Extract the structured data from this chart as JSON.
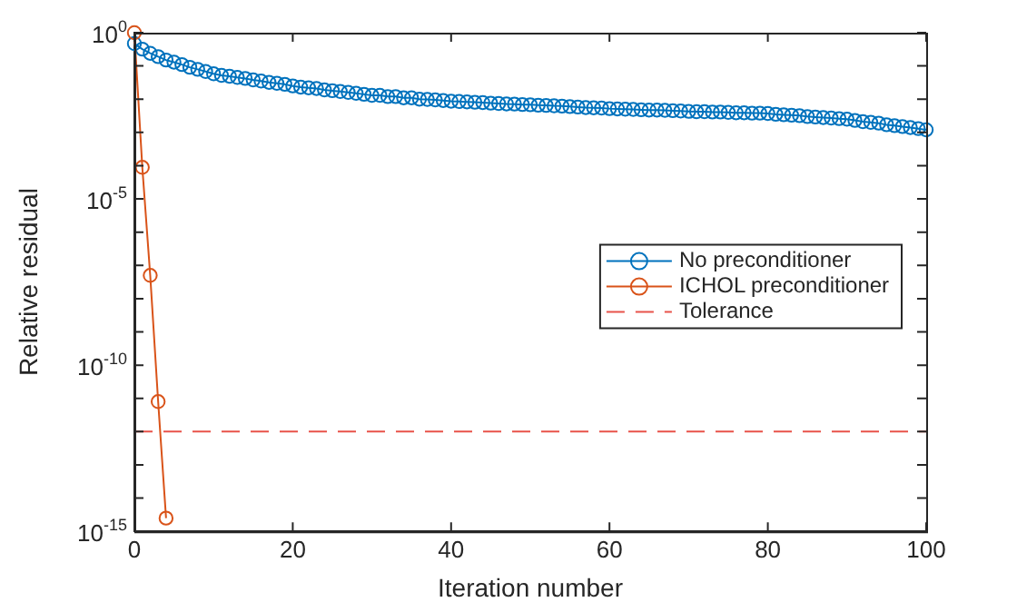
{
  "chart_data": {
    "type": "line",
    "xlabel": "Iteration number",
    "ylabel": "Relative residual",
    "x": [
      0,
      1,
      2,
      3,
      4,
      5,
      6,
      7,
      8,
      9,
      10,
      11,
      12,
      13,
      14,
      15,
      16,
      17,
      18,
      19,
      20,
      21,
      22,
      23,
      24,
      25,
      26,
      27,
      28,
      29,
      30,
      31,
      32,
      33,
      34,
      35,
      36,
      37,
      38,
      39,
      40,
      41,
      42,
      43,
      44,
      45,
      46,
      47,
      48,
      49,
      50,
      51,
      52,
      53,
      54,
      55,
      56,
      57,
      58,
      59,
      60,
      61,
      62,
      63,
      64,
      65,
      66,
      67,
      68,
      69,
      70,
      71,
      72,
      73,
      74,
      75,
      76,
      77,
      78,
      79,
      80,
      81,
      82,
      83,
      84,
      85,
      86,
      87,
      88,
      89,
      90,
      91,
      92,
      93,
      94,
      95,
      96,
      97,
      98,
      99,
      100
    ],
    "series": [
      {
        "name": "No preconditioner",
        "color": "#0072bd",
        "values": [
          0.47,
          0.32,
          0.24,
          0.19,
          0.15,
          0.13,
          0.11,
          0.091,
          0.079,
          0.068,
          0.058,
          0.052,
          0.049,
          0.045,
          0.042,
          0.038,
          0.035,
          0.032,
          0.03,
          0.028,
          0.025,
          0.023,
          0.022,
          0.021,
          0.019,
          0.018,
          0.017,
          0.016,
          0.015,
          0.014,
          0.013,
          0.013,
          0.012,
          0.012,
          0.011,
          0.011,
          0.01,
          0.0098,
          0.0095,
          0.0091,
          0.0087,
          0.0085,
          0.0083,
          0.0081,
          0.0079,
          0.0076,
          0.0074,
          0.0072,
          0.0071,
          0.0069,
          0.0068,
          0.0066,
          0.0065,
          0.0063,
          0.0062,
          0.006,
          0.0058,
          0.0056,
          0.0055,
          0.0054,
          0.0052,
          0.0051,
          0.005,
          0.0049,
          0.0048,
          0.0047,
          0.0047,
          0.0046,
          0.0045,
          0.0044,
          0.0043,
          0.0042,
          0.0042,
          0.0041,
          0.0041,
          0.004,
          0.0039,
          0.0039,
          0.0038,
          0.0038,
          0.0037,
          0.0035,
          0.0034,
          0.0033,
          0.0032,
          0.003,
          0.0029,
          0.0028,
          0.0027,
          0.0026,
          0.0025,
          0.0023,
          0.0021,
          0.002,
          0.0019,
          0.0017,
          0.0016,
          0.0015,
          0.0014,
          0.0013,
          0.0012
        ]
      },
      {
        "name": "ICHOL preconditioner",
        "color": "#d95319",
        "x": [
          0,
          1,
          2,
          3,
          4
        ],
        "values": [
          1,
          8.9e-05,
          5e-08,
          8e-12,
          2.5e-15
        ]
      }
    ],
    "ref_lines": [
      {
        "axis": "y",
        "value": 1e-12,
        "label": "Tolerance",
        "color": "#e8534a",
        "line_style": "dashed"
      }
    ],
    "log": "y",
    "xlim": [
      0,
      100
    ],
    "xticks": [
      0,
      20,
      40,
      60,
      80,
      100
    ],
    "ylim": [
      1e-15,
      1
    ],
    "yticks": [
      {
        "value": 1,
        "label": "10$^{0}$"
      },
      {
        "value": 0.1,
        "label": null
      },
      {
        "value": 0.01,
        "label": null
      },
      {
        "value": 0.001,
        "label": null
      },
      {
        "value": 0.0001,
        "label": null
      },
      {
        "value": 1e-05,
        "label": "10$^{-5}$"
      },
      {
        "value": 1e-06,
        "label": null
      },
      {
        "value": 1e-07,
        "label": null
      },
      {
        "value": 1e-08,
        "label": null
      },
      {
        "value": 1e-09,
        "label": null
      },
      {
        "value": 1e-10,
        "label": "10$^{-10}$"
      },
      {
        "value": 1e-11,
        "label": null
      },
      {
        "value": 1e-12,
        "label": null
      },
      {
        "value": 1e-13,
        "label": null
      },
      {
        "value": 1e-14,
        "label": null
      },
      {
        "value": 1e-15,
        "label": "10$^{-15}$"
      }
    ],
    "grid": false,
    "legend": "right",
    "marker": "circle",
    "line_style": "solid"
  }
}
